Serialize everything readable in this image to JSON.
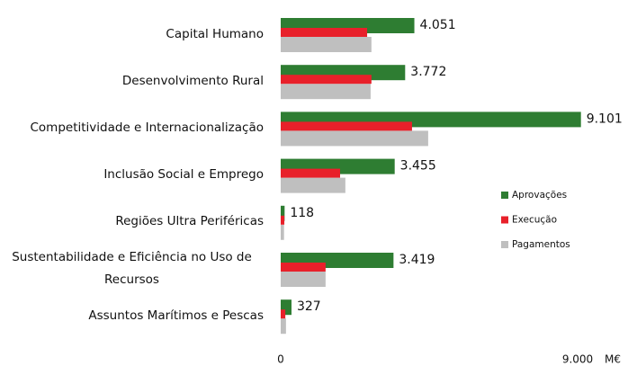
{
  "chart_data": {
    "type": "bar",
    "orientation": "horizontal",
    "categories": [
      "Capital Humano",
      "Desenvolvimento Rural",
      "Competitividade e Internacionalização",
      "Inclusão Social e Emprego",
      "Regiões Ultra Periféricas",
      "Sustentabilidade e Eficiência no Uso de Recursos",
      "Assuntos Marítimos e Pescas"
    ],
    "series": [
      {
        "name": "Aprovações",
        "color": "#2e7d32",
        "values": [
          4051,
          3772,
          9101,
          3455,
          118,
          3419,
          327
        ],
        "value_labels": [
          "4.051",
          "3.772",
          "9.101",
          "3.455",
          "118",
          "3.419",
          "327"
        ]
      },
      {
        "name": "Execução",
        "color": "#e8202a",
        "values": [
          2620,
          2750,
          3980,
          1800,
          110,
          1360,
          140
        ]
      },
      {
        "name": "Pagamentos",
        "color": "#bfbfbf",
        "values": [
          2750,
          2725,
          4470,
          1960,
          100,
          1360,
          160
        ]
      }
    ],
    "xlim": [
      0,
      9000
    ],
    "xticks": [
      0,
      {
        "value": 9000,
        "label": "9.000"
      }
    ],
    "xlabel": "M€",
    "legend": "right"
  }
}
